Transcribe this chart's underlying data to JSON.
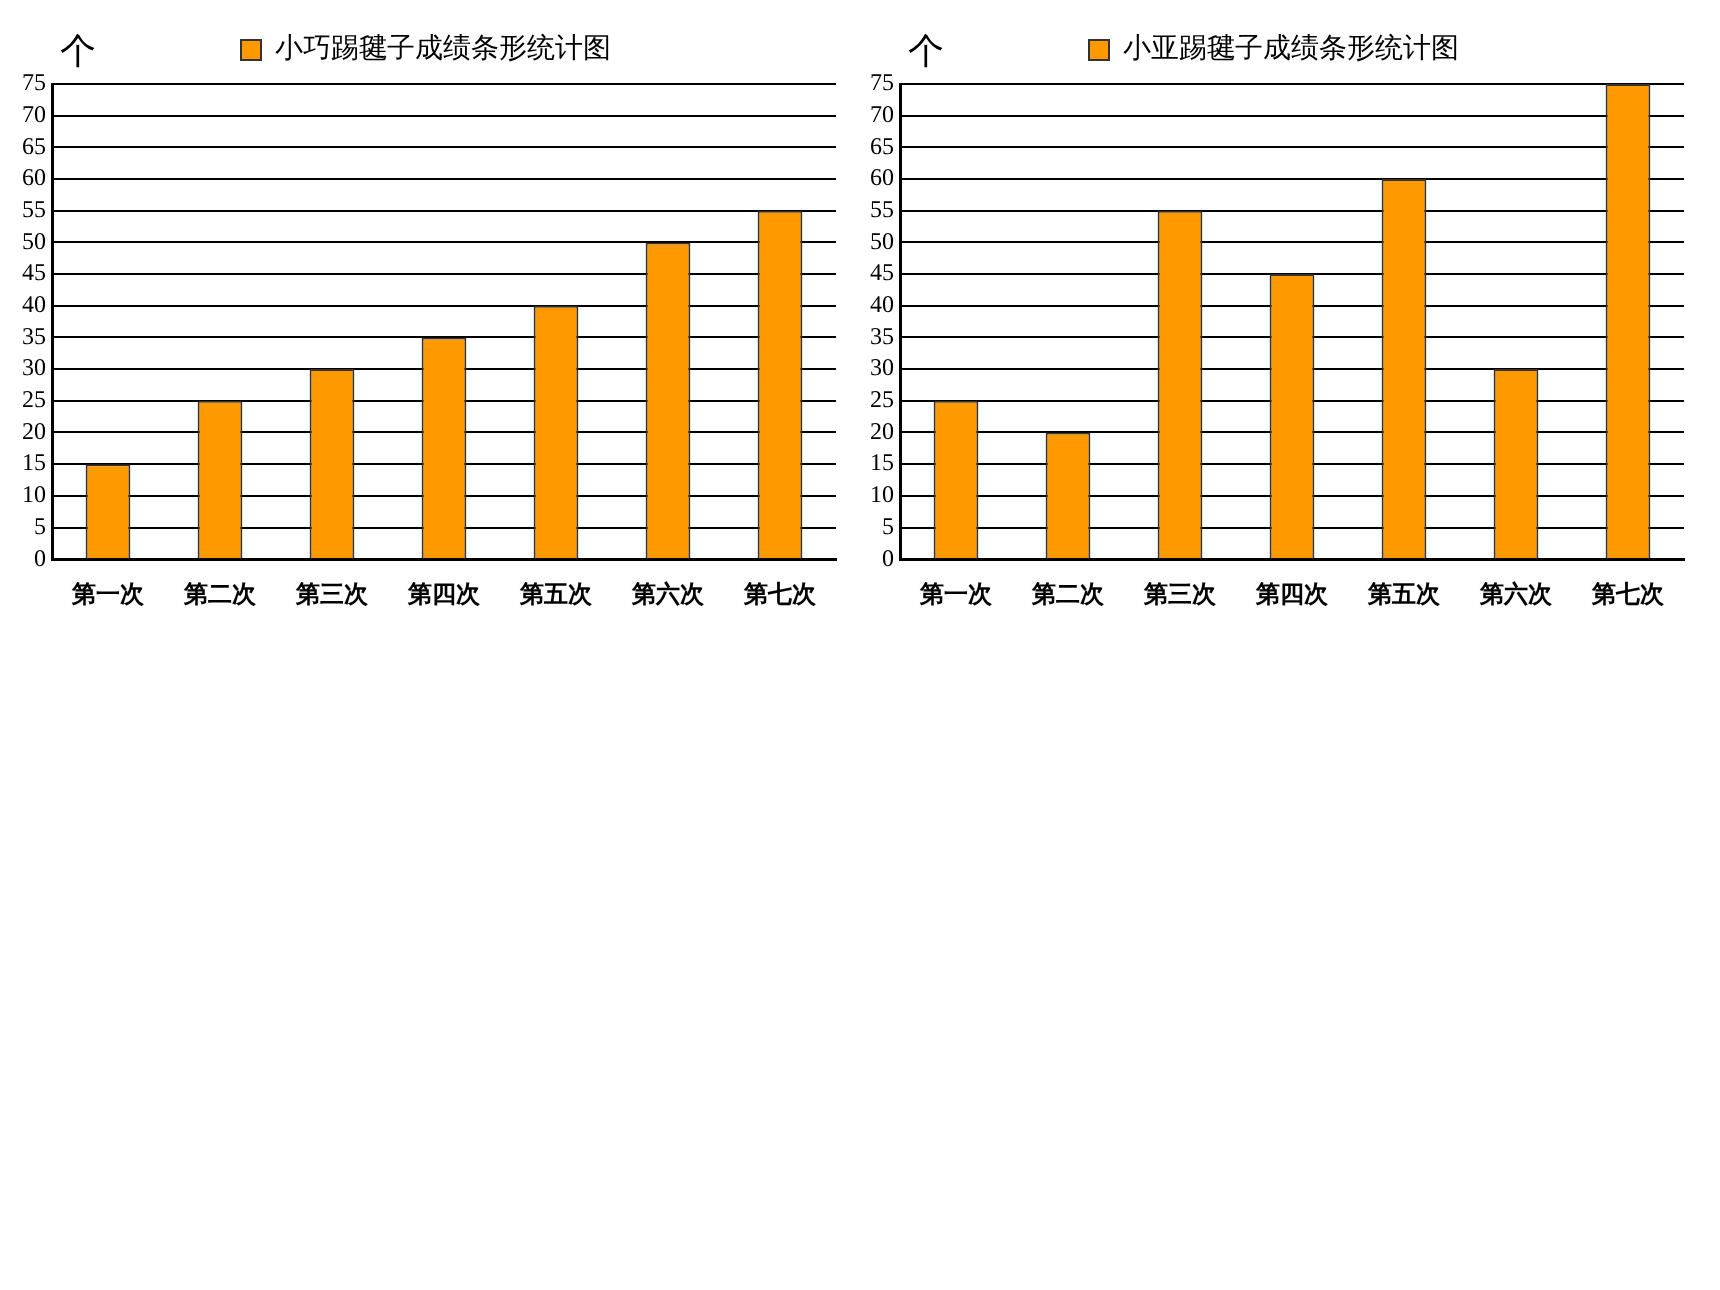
{
  "chart_data": [
    {
      "type": "bar",
      "ylabel": "个",
      "categories": [
        "第一次",
        "第二次",
        "第三次",
        "第四次",
        "第五次",
        "第六次",
        "第七次"
      ],
      "series": [
        {
          "name": "小巧踢毽子成绩条形统计图",
          "color": "#ff9900",
          "values": [
            15,
            25,
            30,
            35,
            40,
            50,
            55
          ]
        }
      ],
      "ylim": [
        0,
        75
      ],
      "yticks": [
        0,
        5,
        10,
        15,
        20,
        25,
        30,
        35,
        40,
        45,
        50,
        55,
        60,
        65,
        70,
        75
      ],
      "grid": "y",
      "legend": "top"
    },
    {
      "type": "bar",
      "ylabel": "个",
      "categories": [
        "第一次",
        "第二次",
        "第三次",
        "第四次",
        "第五次",
        "第六次",
        "第七次"
      ],
      "series": [
        {
          "name": "小亚踢毽子成绩条形统计图",
          "color": "#ff9900",
          "values": [
            25,
            20,
            55,
            45,
            60,
            30,
            75
          ]
        }
      ],
      "ylim": [
        0,
        75
      ],
      "yticks": [
        0,
        5,
        10,
        15,
        20,
        25,
        30,
        35,
        40,
        45,
        50,
        55,
        60,
        65,
        70,
        75
      ],
      "grid": "y",
      "legend": "top"
    }
  ]
}
